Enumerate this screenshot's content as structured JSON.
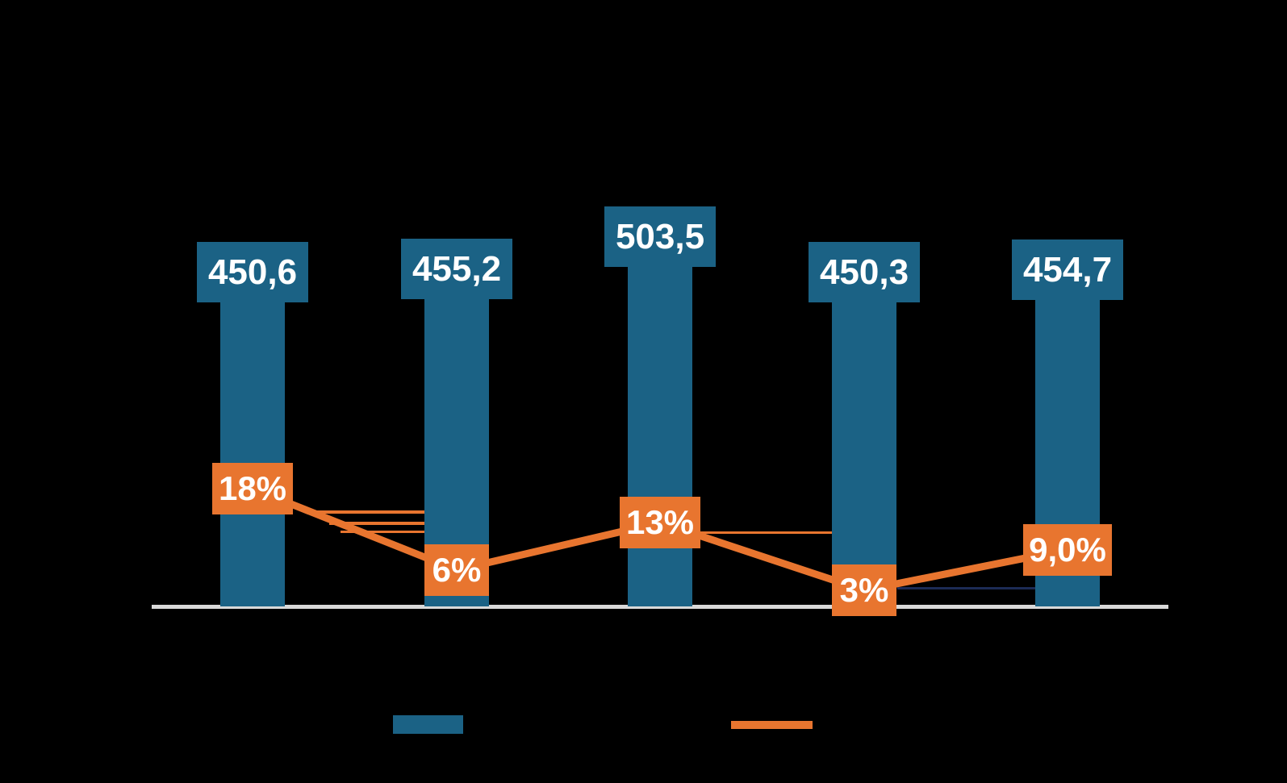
{
  "chart_data": {
    "type": "combo-bar-line",
    "series": [
      {
        "name": "bar-series",
        "type": "bar",
        "color": "#1B6285",
        "values": [
          450.6,
          455.2,
          503.5,
          450.3,
          454.7
        ],
        "data_labels": [
          "450,6",
          "455,2",
          "503,5",
          "450,3",
          "454,7"
        ],
        "data_label_style": "white-bold-on-bar-color-box-above-bar"
      },
      {
        "name": "line-series",
        "type": "line",
        "color": "#E8752F",
        "values": [
          18,
          6,
          13,
          3,
          9.0
        ],
        "data_labels": [
          "18%",
          "6%",
          "13%",
          "3%",
          "9,0%"
        ],
        "data_label_style": "white-bold-on-line-color-box-centered-on-point"
      }
    ],
    "axes": {
      "x_axis_line_color": "#D9D9D9",
      "x_axis_line_visible": true,
      "y_axis_visible": false,
      "tick_labels_visible": false,
      "gridlines_visible": false
    },
    "legend": {
      "position": "bottom-center",
      "entries": [
        {
          "series": "bar-series",
          "swatch": "rectangle",
          "color": "#1B6285"
        },
        {
          "series": "line-series",
          "swatch": "line",
          "color": "#E8752F"
        }
      ],
      "labels_visible": false
    },
    "background_color": "#000000",
    "data_label_text_color": "#FFFFFF"
  }
}
